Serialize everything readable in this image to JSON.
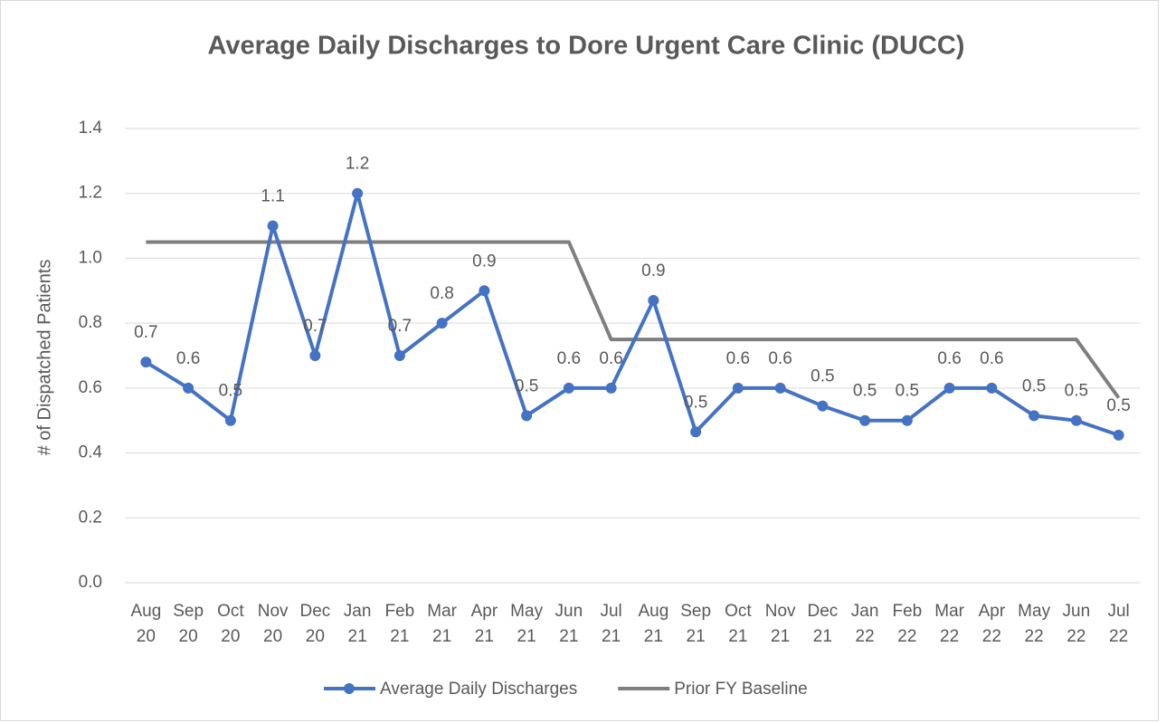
{
  "chart_data": {
    "type": "line",
    "title": "Average Daily Discharges to Dore Urgent Care Clinic (DUCC)",
    "y_label": "# of Dispatched Patients",
    "categories": [
      "Aug 20",
      "Sep 20",
      "Oct 20",
      "Nov 20",
      "Dec 20",
      "Jan 21",
      "Feb 21",
      "Mar 21",
      "Apr 21",
      "May 21",
      "Jun 21",
      "Jul 21",
      "Aug 21",
      "Sep 21",
      "Oct 21",
      "Nov 21",
      "Dec 21",
      "Jan 22",
      "Feb 22",
      "Mar 22",
      "Apr 22",
      "May 22",
      "Jun 22",
      "Jul 22"
    ],
    "series": [
      {
        "name": "Average Daily Discharges",
        "color": "#4472c4",
        "markers": true,
        "values": [
          0.68,
          0.6,
          0.5,
          1.1,
          0.7,
          1.2,
          0.7,
          0.8,
          0.9,
          0.515,
          0.6,
          0.6,
          0.87,
          0.465,
          0.6,
          0.6,
          0.545,
          0.5,
          0.5,
          0.6,
          0.6,
          0.515,
          0.5,
          0.455
        ],
        "value_labels": [
          "0.7",
          "0.6",
          "0.5",
          "1.1",
          "0.7",
          "1.2",
          "0.7",
          "0.8",
          "0.9",
          "0.5",
          "0.6",
          "0.6",
          "0.9",
          "0.5",
          "0.6",
          "0.6",
          "0.5",
          "0.5",
          "0.5",
          "0.6",
          "0.6",
          "0.5",
          "0.5",
          "0.5"
        ]
      },
      {
        "name": "Prior FY Baseline",
        "color": "#7f7f7f",
        "markers": false,
        "values": [
          1.05,
          1.05,
          1.05,
          1.05,
          1.05,
          1.05,
          1.05,
          1.05,
          1.05,
          1.05,
          1.05,
          0.75,
          0.75,
          0.75,
          0.75,
          0.75,
          0.75,
          0.75,
          0.75,
          0.75,
          0.75,
          0.75,
          0.75,
          0.57
        ]
      }
    ],
    "ylim": [
      0,
      1.4
    ],
    "yticks": [
      {
        "value": 0,
        "label": "0.0"
      },
      0.2,
      0.4,
      0.6,
      0.8,
      {
        "value": 1,
        "label": "1.0"
      },
      1.2,
      1.4
    ],
    "grid": true,
    "legend": "bottom"
  }
}
